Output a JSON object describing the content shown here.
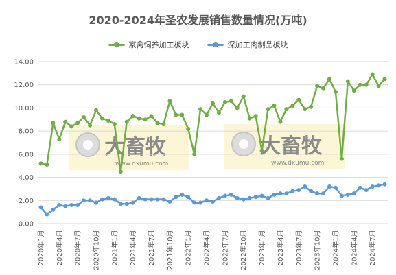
{
  "chart_data": {
    "type": "line",
    "title": "2020-2024年圣农发展销售数量情况(万吨)",
    "xlabel": "",
    "ylabel": "",
    "ylim": [
      0,
      14
    ],
    "y_ticks": [
      "0.00",
      "2.00",
      "4.00",
      "6.00",
      "8.00",
      "10.00",
      "12.00",
      "14.00"
    ],
    "grid": true,
    "legend_position": "top",
    "x_tick_labels": [
      "2020年1月",
      "2020年4月",
      "2020年7月",
      "2020年10月",
      "2021年1月",
      "2021年4月",
      "2021年7月",
      "2021年10月",
      "2022年1月",
      "2022年4月",
      "2022年7月",
      "2022年10月",
      "2023年1月",
      "2023年4月",
      "2023年7月",
      "2023年10月",
      "2024年1月",
      "2024年4月",
      "2024年7月"
    ],
    "x": [
      "2020年1月",
      "2020年2月",
      "2020年3月",
      "2020年4月",
      "2020年5月",
      "2020年6月",
      "2020年7月",
      "2020年8月",
      "2020年9月",
      "2020年10月",
      "2020年11月",
      "2020年12月",
      "2021年1月",
      "2021年2月",
      "2021年3月",
      "2021年4月",
      "2021年5月",
      "2021年6月",
      "2021年7月",
      "2021年8月",
      "2021年9月",
      "2021年10月",
      "2021年11月",
      "2021年12月",
      "2022年1月",
      "2022年2月",
      "2022年3月",
      "2022年4月",
      "2022年5月",
      "2022年6月",
      "2022年7月",
      "2022年8月",
      "2022年9月",
      "2022年10月",
      "2022年11月",
      "2022年12月",
      "2023年1月",
      "2023年2月",
      "2023年3月",
      "2023年4月",
      "2023年5月",
      "2023年6月",
      "2023年7月",
      "2023年8月",
      "2023年9月",
      "2023年10月",
      "2023年11月",
      "2023年12月",
      "2024年1月",
      "2024年2月",
      "2024年3月",
      "2024年4月",
      "2024年5月",
      "2024年6月",
      "2024年7月",
      "2024年8月",
      "2024年9月"
    ],
    "series": [
      {
        "name": "家禽饲养加工板块",
        "color": "#70ad47",
        "values": [
          5.2,
          5.1,
          8.7,
          7.3,
          8.8,
          8.4,
          8.7,
          9.2,
          8.5,
          9.8,
          9.1,
          8.9,
          8.6,
          4.5,
          8.8,
          9.3,
          9.1,
          9.0,
          9.3,
          8.7,
          8.6,
          10.6,
          9.4,
          9.4,
          8.2,
          6.0,
          9.9,
          9.4,
          10.4,
          9.6,
          10.5,
          10.6,
          10.0,
          11.0,
          9.1,
          9.3,
          6.3,
          9.9,
          10.2,
          8.8,
          9.9,
          10.2,
          10.7,
          9.9,
          10.1,
          11.9,
          11.7,
          12.5,
          11.4,
          5.6,
          12.3,
          11.5,
          12.0,
          12.0,
          12.9,
          11.9,
          12.5
        ]
      },
      {
        "name": "深加工肉制品板块",
        "color": "#5b9bd5",
        "values": [
          1.4,
          0.8,
          1.2,
          1.6,
          1.5,
          1.6,
          1.6,
          2.0,
          2.0,
          1.8,
          2.1,
          2.2,
          2.1,
          1.7,
          1.7,
          1.8,
          2.2,
          2.1,
          2.1,
          2.1,
          2.1,
          1.9,
          2.3,
          2.5,
          2.3,
          1.8,
          1.8,
          2.0,
          1.9,
          2.2,
          2.4,
          2.5,
          2.2,
          2.1,
          2.2,
          2.3,
          2.4,
          2.2,
          2.5,
          2.6,
          2.6,
          2.8,
          2.9,
          3.2,
          2.8,
          2.6,
          2.6,
          3.2,
          3.1,
          2.4,
          2.5,
          2.6,
          3.1,
          2.9,
          3.2,
          3.3,
          3.4
        ]
      }
    ],
    "watermarks": [
      {
        "brand": "大畜牧",
        "url": "www.dxumu.com"
      },
      {
        "brand": "大畜牧",
        "url": "www.dxumu.com"
      }
    ]
  }
}
